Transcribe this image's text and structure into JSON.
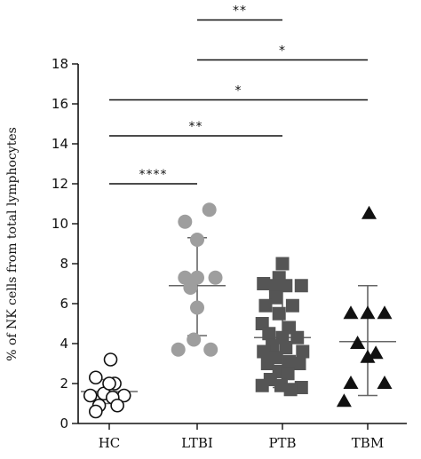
{
  "chart_data": {
    "type": "scatter",
    "ylabel": "% of NK cells from total lymphocytes",
    "xlabel": "",
    "ylim": [
      0,
      18
    ],
    "yticks": [
      0,
      2,
      4,
      6,
      8,
      10,
      12,
      14,
      16,
      18
    ],
    "categories": [
      "HC",
      "LTBI",
      "PTB",
      "TBM"
    ],
    "groups": [
      {
        "name": "HC",
        "marker": "circle-open",
        "color": "#111111",
        "mean": 1.6,
        "sd": [
          1.0,
          2.2
        ],
        "points": [
          {
            "dx": 0.52,
            "y": 3.2
          },
          {
            "dx": 0.3,
            "y": 2.3
          },
          {
            "dx": 0.58,
            "y": 2.0
          },
          {
            "dx": 0.42,
            "y": 1.5
          },
          {
            "dx": 0.22,
            "y": 1.4
          },
          {
            "dx": 0.72,
            "y": 1.4
          },
          {
            "dx": 0.55,
            "y": 1.3
          },
          {
            "dx": 0.35,
            "y": 0.9
          },
          {
            "dx": 0.62,
            "y": 0.9
          },
          {
            "dx": 0.3,
            "y": 0.6
          },
          {
            "dx": 0.5,
            "y": 2.0
          }
        ]
      },
      {
        "name": "LTBI",
        "marker": "circle-filled",
        "color": "#9e9e9e",
        "mean": 6.9,
        "sd": [
          4.4,
          9.3
        ],
        "points": [
          {
            "dx": 0.68,
            "y": 10.7
          },
          {
            "dx": 0.32,
            "y": 10.1
          },
          {
            "dx": 0.5,
            "y": 9.2
          },
          {
            "dx": 0.32,
            "y": 7.3
          },
          {
            "dx": 0.5,
            "y": 7.3
          },
          {
            "dx": 0.77,
            "y": 7.3
          },
          {
            "dx": 0.4,
            "y": 6.8
          },
          {
            "dx": 0.5,
            "y": 5.8
          },
          {
            "dx": 0.22,
            "y": 3.7
          },
          {
            "dx": 0.45,
            "y": 4.2
          },
          {
            "dx": 0.7,
            "y": 3.7
          }
        ]
      },
      {
        "name": "PTB",
        "marker": "square-filled",
        "color": "#555555",
        "mean": 4.3,
        "sd": [
          1.8,
          6.9
        ],
        "points": [
          {
            "dx": 0.5,
            "y": 8.0
          },
          {
            "dx": 0.45,
            "y": 7.3
          },
          {
            "dx": 0.22,
            "y": 7.0
          },
          {
            "dx": 0.4,
            "y": 6.9
          },
          {
            "dx": 0.55,
            "y": 6.9
          },
          {
            "dx": 0.78,
            "y": 6.9
          },
          {
            "dx": 0.4,
            "y": 6.3
          },
          {
            "dx": 0.25,
            "y": 5.9
          },
          {
            "dx": 0.65,
            "y": 5.9
          },
          {
            "dx": 0.45,
            "y": 5.5
          },
          {
            "dx": 0.2,
            "y": 5.0
          },
          {
            "dx": 0.6,
            "y": 4.8
          },
          {
            "dx": 0.3,
            "y": 4.5
          },
          {
            "dx": 0.5,
            "y": 4.3
          },
          {
            "dx": 0.72,
            "y": 4.3
          },
          {
            "dx": 0.35,
            "y": 3.9
          },
          {
            "dx": 0.55,
            "y": 3.8
          },
          {
            "dx": 0.22,
            "y": 3.6
          },
          {
            "dx": 0.8,
            "y": 3.6
          },
          {
            "dx": 0.4,
            "y": 3.3
          },
          {
            "dx": 0.6,
            "y": 3.1
          },
          {
            "dx": 0.28,
            "y": 3.0
          },
          {
            "dx": 0.75,
            "y": 3.0
          },
          {
            "dx": 0.45,
            "y": 2.6
          },
          {
            "dx": 0.58,
            "y": 2.5
          },
          {
            "dx": 0.32,
            "y": 2.2
          },
          {
            "dx": 0.78,
            "y": 1.8
          },
          {
            "dx": 0.2,
            "y": 1.9
          },
          {
            "dx": 0.48,
            "y": 1.9
          },
          {
            "dx": 0.62,
            "y": 1.7
          }
        ]
      },
      {
        "name": "TBM",
        "marker": "triangle-filled",
        "color": "#111111",
        "mean": 4.1,
        "sd": [
          1.4,
          6.9
        ],
        "points": [
          {
            "dx": 0.52,
            "y": 10.5
          },
          {
            "dx": 0.25,
            "y": 5.5
          },
          {
            "dx": 0.5,
            "y": 5.5
          },
          {
            "dx": 0.75,
            "y": 5.5
          },
          {
            "dx": 0.35,
            "y": 4.0
          },
          {
            "dx": 0.62,
            "y": 3.5
          },
          {
            "dx": 0.5,
            "y": 3.3
          },
          {
            "dx": 0.25,
            "y": 2.0
          },
          {
            "dx": 0.75,
            "y": 2.0
          },
          {
            "dx": 0.15,
            "y": 1.1
          }
        ]
      }
    ],
    "significance": [
      {
        "from": "HC",
        "to": "LTBI",
        "y": 12.0,
        "label": "****"
      },
      {
        "from": "HC",
        "to": "PTB",
        "y": 14.4,
        "label": "**"
      },
      {
        "from": "HC",
        "to": "TBM",
        "y": 16.2,
        "label": "*"
      },
      {
        "from": "LTBI",
        "to": "TBM",
        "y": 18.2,
        "label": "*"
      },
      {
        "from": "LTBI",
        "to": "PTB",
        "y": 20.2,
        "label": "**"
      }
    ]
  }
}
